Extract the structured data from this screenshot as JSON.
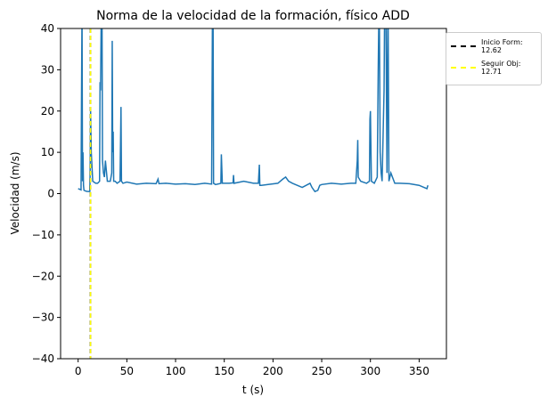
{
  "chart_data": {
    "type": "line",
    "title": "Norma de la velocidad de la formación, físico ADD",
    "xlabel": "t (s)",
    "ylabel": "Velocidad (m/s)",
    "xlim": [
      -18,
      378
    ],
    "xticks": [
      0,
      50,
      100,
      150,
      200,
      250,
      300,
      350
    ],
    "ylim": [
      -40,
      40
    ],
    "yticks": [
      {
        "value": -40,
        "label": "−40"
      },
      {
        "value": -30,
        "label": "−30"
      },
      {
        "value": -20,
        "label": "−20"
      },
      {
        "value": -10,
        "label": "−10"
      },
      0,
      10,
      20,
      30,
      40
    ],
    "series": [
      {
        "color": "#1f77b4",
        "x": [
          0,
          2,
          3,
          3.5,
          4,
          4.5,
          5,
          5.5,
          6,
          8,
          10,
          12,
          12.3,
          12.8,
          13.5,
          15,
          18,
          20,
          22,
          22.5,
          23,
          24,
          24.5,
          25,
          26,
          27,
          28,
          30,
          33,
          34.5,
          35,
          35.5,
          36,
          36.5,
          38,
          40,
          43,
          44,
          44.5,
          46,
          50,
          60,
          70,
          80,
          82,
          83,
          90,
          100,
          110,
          120,
          130,
          137,
          138,
          138.5,
          139,
          141,
          145,
          146.5,
          147,
          148,
          155,
          159,
          159.5,
          160,
          170,
          180,
          185,
          186,
          186.5,
          188,
          195,
          205,
          210,
          213,
          216,
          220,
          230,
          238,
          240,
          243,
          246,
          248,
          250,
          260,
          270,
          280,
          285,
          286.5,
          287,
          287.5,
          290,
          296,
          299,
          299.5,
          300,
          301,
          304,
          307,
          308,
          309,
          310,
          311,
          312,
          314,
          315,
          316,
          317,
          318,
          319,
          321,
          325,
          330,
          340,
          350,
          355,
          358,
          359
        ],
        "values": [
          1.2,
          1.0,
          0.9,
          25,
          45,
          3,
          10,
          2,
          0.8,
          0.6,
          0.5,
          0.5,
          5,
          20,
          10,
          3,
          2.5,
          2.5,
          3,
          27,
          25,
          50,
          45,
          8,
          5,
          4,
          8,
          3,
          3,
          5,
          37,
          10,
          15,
          3,
          3,
          2.5,
          3,
          21,
          3,
          2.5,
          2.8,
          2.3,
          2.5,
          2.4,
          3.5,
          2.4,
          2.5,
          2.3,
          2.4,
          2.2,
          2.5,
          2.3,
          50,
          45,
          2.5,
          2.2,
          2.4,
          2.5,
          9.5,
          2.5,
          2.5,
          2.6,
          4.5,
          2.5,
          3,
          2.5,
          2.5,
          7,
          2,
          2,
          2.2,
          2.5,
          3.5,
          4,
          3,
          2.5,
          1.5,
          2.5,
          1.5,
          0.5,
          0.8,
          2,
          2.2,
          2.5,
          2.3,
          2.5,
          2.5,
          8,
          13,
          4,
          3,
          2.5,
          3,
          18,
          20,
          3,
          2.5,
          4,
          30,
          50,
          10,
          5,
          3,
          25,
          60,
          40,
          5,
          50,
          3,
          5,
          2.5,
          2.5,
          2.4,
          2,
          1.5,
          1.2,
          2
        ]
      }
    ],
    "vlines": [
      {
        "label": "Inicio Form:\n12.62",
        "x": 12.62,
        "color": "#000000"
      },
      {
        "label": "Seguir Obj:\n12.71",
        "x": 12.71,
        "color": "#ffff00"
      }
    ]
  }
}
